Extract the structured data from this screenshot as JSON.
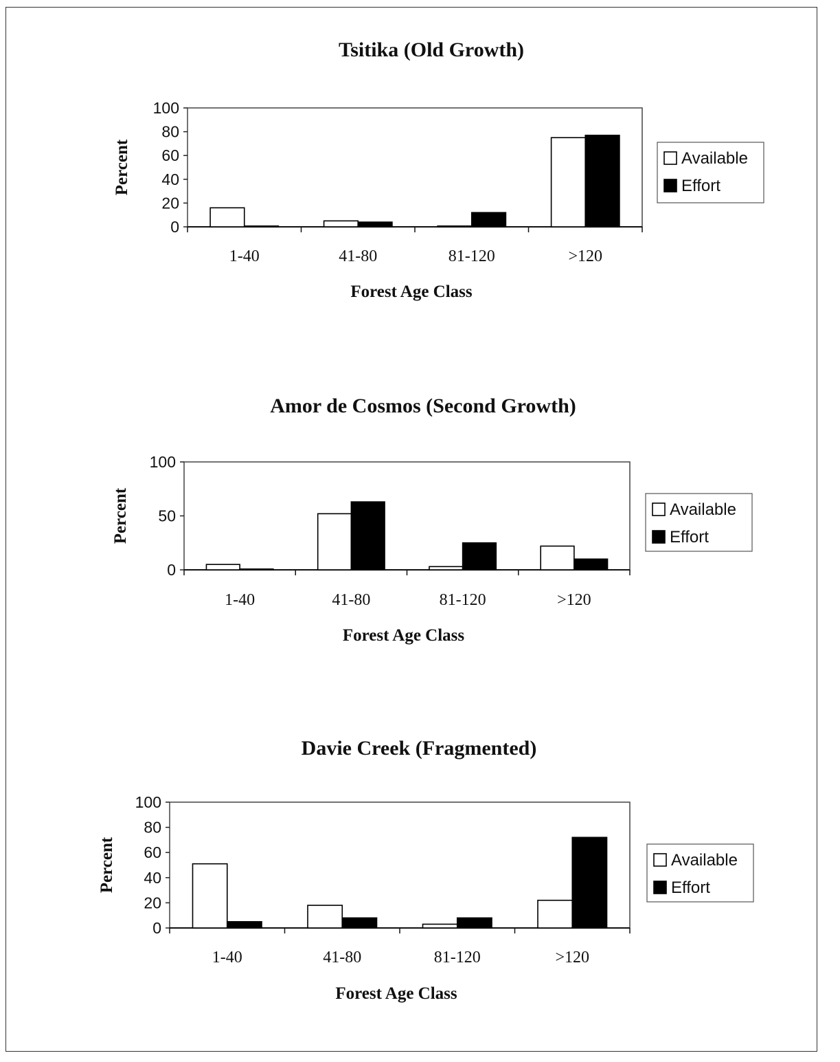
{
  "chart_data": [
    {
      "type": "bar",
      "title": "Tsitika (Old Growth)",
      "xlabel": "Forest Age Class",
      "ylabel": "Percent",
      "categories": [
        "1-40",
        "41-80",
        "81-120",
        ">120"
      ],
      "series": [
        {
          "name": "Available",
          "color": "#ffffff",
          "values": [
            16,
            5,
            0,
            75
          ]
        },
        {
          "name": "Effort",
          "color": "#000000",
          "values": [
            0,
            4,
            12,
            77
          ]
        }
      ],
      "ylim": [
        0,
        100
      ],
      "yticks": [
        "0",
        "20",
        "40",
        "60",
        "80",
        "100"
      ],
      "legend": "right"
    },
    {
      "type": "bar",
      "title": "Amor de Cosmos (Second Growth)",
      "xlabel": "Forest Age Class",
      "ylabel": "Percent",
      "categories": [
        "1-40",
        "41-80",
        "81-120",
        ">120"
      ],
      "series": [
        {
          "name": "Available",
          "color": "#ffffff",
          "values": [
            5,
            52,
            3,
            22
          ]
        },
        {
          "name": "Effort",
          "color": "#000000",
          "values": [
            0,
            63,
            25,
            10
          ]
        }
      ],
      "ylim": [
        0,
        100
      ],
      "yticks": [
        "0",
        "50",
        "100"
      ],
      "legend": "right"
    },
    {
      "type": "bar",
      "title": "Davie Creek (Fragmented)",
      "xlabel": "Forest Age Class",
      "ylabel": "Percent",
      "categories": [
        "1-40",
        "41-80",
        "81-120",
        ">120"
      ],
      "series": [
        {
          "name": "Available",
          "color": "#ffffff",
          "values": [
            51,
            18,
            3,
            22
          ]
        },
        {
          "name": "Effort",
          "color": "#000000",
          "values": [
            5,
            8,
            8,
            72
          ]
        }
      ],
      "ylim": [
        0,
        100
      ],
      "yticks": [
        "0",
        "20",
        "40",
        "60",
        "80",
        "100"
      ],
      "legend": "right"
    }
  ]
}
